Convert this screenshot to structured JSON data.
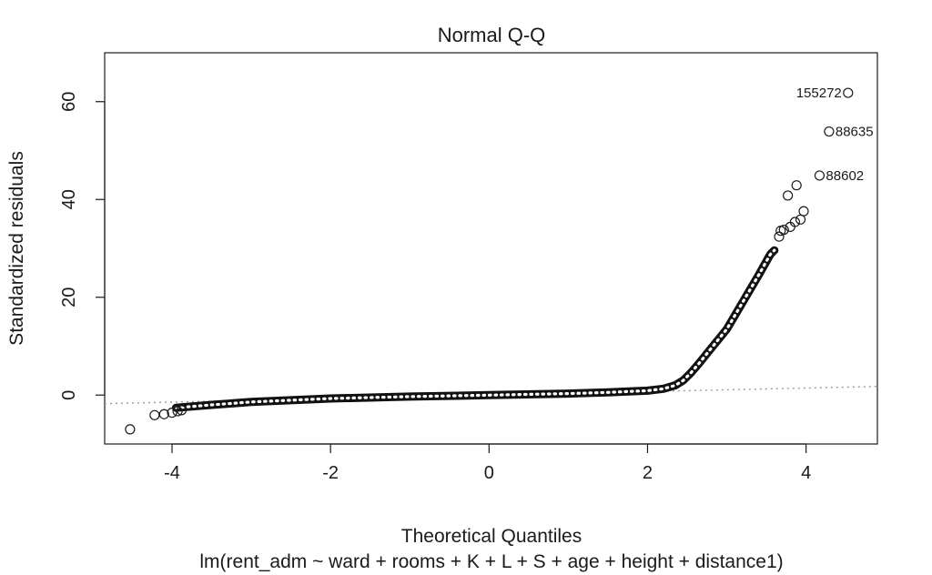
{
  "chart_data": {
    "type": "scatter",
    "title": "Normal Q-Q",
    "xlabel": "Theoretical Quantiles",
    "subtitle": "lm(rent_adm ~ ward + rooms + K + L + S + age + height + distance1)",
    "ylabel": "Standardized residuals",
    "xlim": [
      -4.85,
      4.9
    ],
    "ylim": [
      -10,
      70
    ],
    "xticks": [
      -4,
      -2,
      0,
      2,
      4
    ],
    "yticks": [
      0,
      20,
      40,
      60
    ],
    "grid": false,
    "reference_line": {
      "style": "dotted",
      "color": "#9a9a9a",
      "intercept": 0.0,
      "slope": 0.36
    },
    "labeled_points": [
      {
        "label": "155272",
        "x": 4.53,
        "y": 61.8,
        "side": "left"
      },
      {
        "label": "88635",
        "x": 4.29,
        "y": 53.9,
        "side": "right"
      },
      {
        "label": "88602",
        "x": 4.17,
        "y": 44.9,
        "side": "right"
      }
    ],
    "outlier_points": [
      {
        "x": -4.53,
        "y": -7.0
      },
      {
        "x": -4.22,
        "y": -4.1
      },
      {
        "x": -4.1,
        "y": -3.9
      },
      {
        "x": -4.0,
        "y": -3.6
      },
      {
        "x": -3.93,
        "y": -3.3
      },
      {
        "x": -3.88,
        "y": -3.1
      },
      {
        "x": 3.77,
        "y": 40.8
      },
      {
        "x": 3.88,
        "y": 42.9
      },
      {
        "x": 3.97,
        "y": 37.6
      },
      {
        "x": 3.93,
        "y": 35.9
      },
      {
        "x": 3.86,
        "y": 35.4
      },
      {
        "x": 3.8,
        "y": 34.4
      },
      {
        "x": 3.72,
        "y": 33.8
      },
      {
        "x": 3.68,
        "y": 33.6
      },
      {
        "x": 3.66,
        "y": 32.4
      }
    ],
    "curve_knots": [
      [
        -3.95,
        -2.6
      ],
      [
        -3.5,
        -2.0
      ],
      [
        -3.0,
        -1.4
      ],
      [
        -2.0,
        -0.7
      ],
      [
        -1.0,
        -0.3
      ],
      [
        0.0,
        0.0
      ],
      [
        1.0,
        0.3
      ],
      [
        1.5,
        0.55
      ],
      [
        2.0,
        0.9
      ],
      [
        2.2,
        1.3
      ],
      [
        2.35,
        2.0
      ],
      [
        2.45,
        3.0
      ],
      [
        2.55,
        4.6
      ],
      [
        2.65,
        6.5
      ],
      [
        2.8,
        9.5
      ],
      [
        3.0,
        13.5
      ],
      [
        3.2,
        19.0
      ],
      [
        3.4,
        24.5
      ],
      [
        3.55,
        28.8
      ],
      [
        3.6,
        29.6
      ]
    ]
  }
}
